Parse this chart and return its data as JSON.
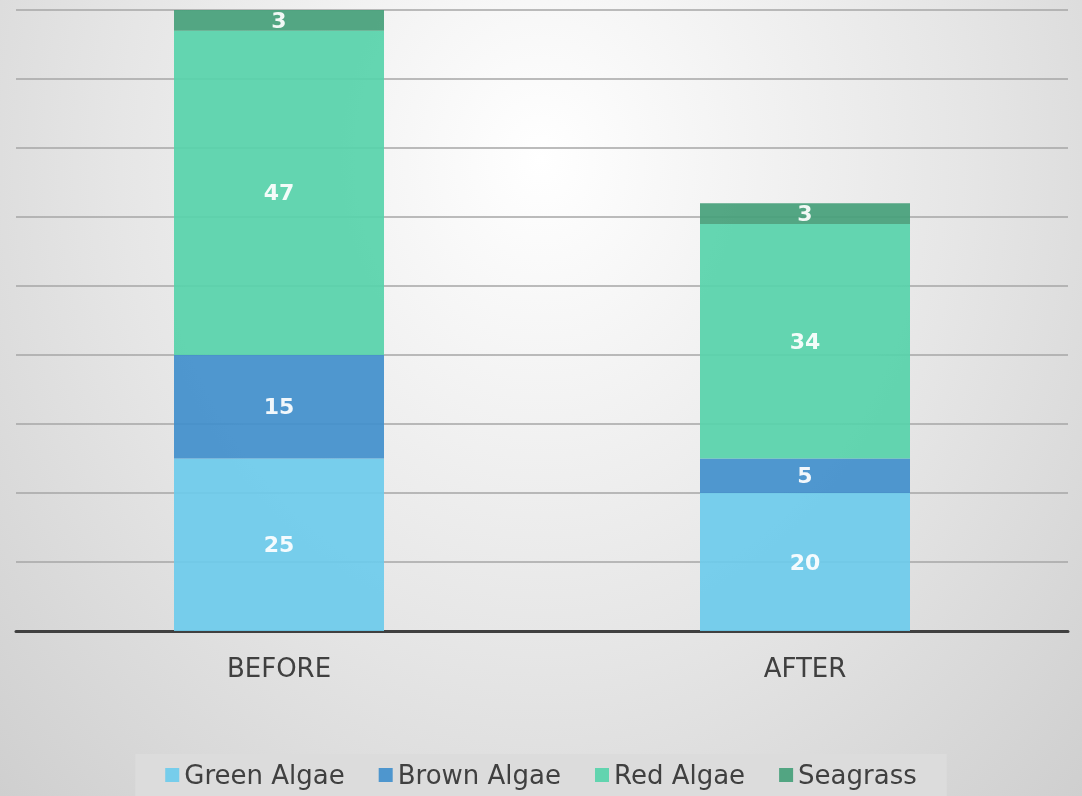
{
  "chart_data": {
    "type": "bar",
    "stacked": true,
    "categories": [
      "BEFORE",
      "AFTER"
    ],
    "series": [
      {
        "name": "Green Algae",
        "color": "#6dcbec",
        "values": [
          25,
          20
        ]
      },
      {
        "name": "Brown Algae",
        "color": "#418fcc",
        "values": [
          15,
          5
        ]
      },
      {
        "name": "Red Algae",
        "color": "#57d2aa",
        "values": [
          47,
          34
        ]
      },
      {
        "name": "Seagrass",
        "color": "#45a07a",
        "values": [
          3,
          3
        ]
      }
    ],
    "tick_labels": "x",
    "grid": "y",
    "legend": "bottom",
    "data_labels": true
  }
}
